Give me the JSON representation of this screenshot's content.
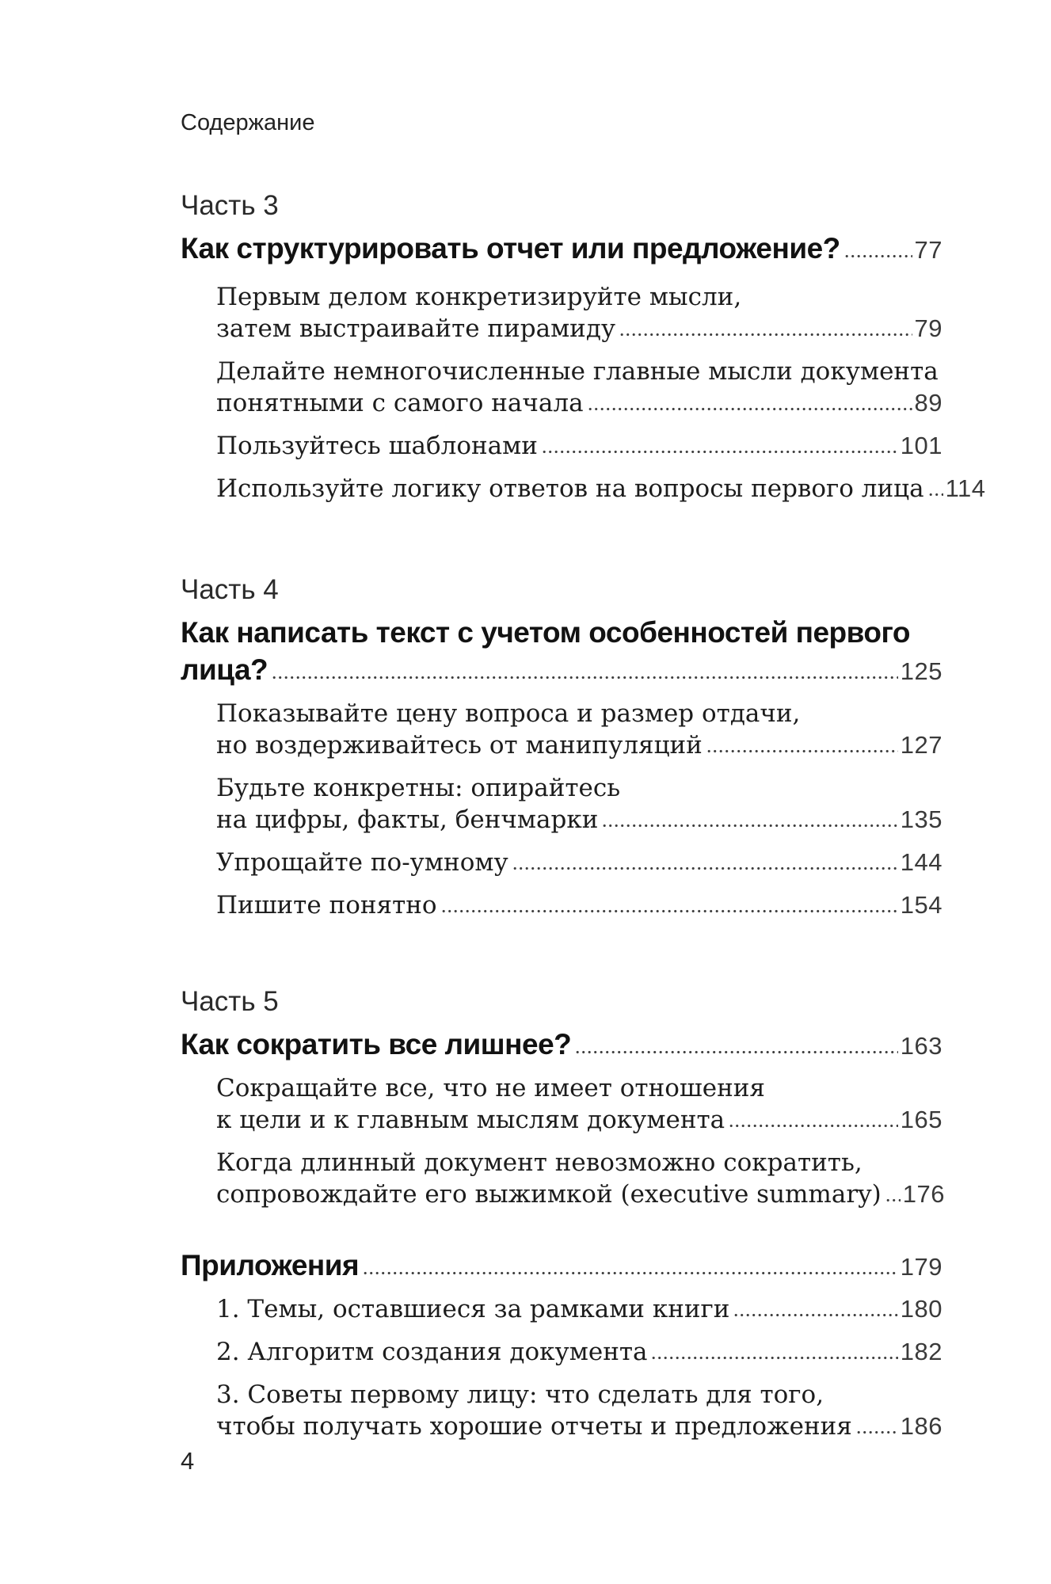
{
  "page": {
    "running_header": "Содержание",
    "folio": "4",
    "background_color": "#ffffff",
    "text_color": "#1c1c1c",
    "leader_dot_color": "#3d3d3d"
  },
  "toc": {
    "sections": [
      {
        "kicker": "Часть 3",
        "title_lines": [
          "Как структурировать отчет или предложение?"
        ],
        "page": "77",
        "entries": [
          {
            "lines": [
              "Первым делом конкретизируйте мысли,",
              "затем выстраивайте пирамиду"
            ],
            "page": "79"
          },
          {
            "lines": [
              "Делайте немногочисленные главные мысли документа",
              "понятными с самого начала"
            ],
            "page": "89"
          },
          {
            "lines": [
              "Пользуйтесь шаблонами"
            ],
            "page": "101"
          },
          {
            "lines": [
              "Используйте логику ответов на вопросы первого лица"
            ],
            "page": "114"
          }
        ]
      },
      {
        "kicker": "Часть 4",
        "title_lines": [
          "Как написать текст с учетом особенностей первого",
          "лица?"
        ],
        "page": "125",
        "entries": [
          {
            "lines": [
              "Показывайте цену вопроса и размер отдачи,",
              "но воздерживайтесь от манипуляций"
            ],
            "page": "127"
          },
          {
            "lines": [
              "Будьте конкретны: опирайтесь",
              "на цифры, факты, бенчмарки"
            ],
            "page": "135"
          },
          {
            "lines": [
              "Упрощайте по-умному"
            ],
            "page": "144"
          },
          {
            "lines": [
              "Пишите понятно"
            ],
            "page": "154"
          }
        ]
      },
      {
        "kicker": "Часть 5",
        "title_lines": [
          "Как сократить все лишнее?"
        ],
        "page": "163",
        "entries": [
          {
            "lines": [
              "Сокращайте все, что не имеет отношения",
              "к цели и к главным мыслям документа"
            ],
            "page": "165"
          },
          {
            "lines": [
              "Когда длинный документ невозможно сократить,",
              "сопровождайте его выжимкой (executive summary)"
            ],
            "page": "176"
          }
        ]
      },
      {
        "kicker": "",
        "title_lines": [
          "Приложения"
        ],
        "page": "179",
        "entries": [
          {
            "lines": [
              "1. Темы, оставшиеся за рамками книги"
            ],
            "page": "180"
          },
          {
            "lines": [
              "2. Алгоритм создания документа"
            ],
            "page": "182"
          },
          {
            "lines": [
              "3. Советы первому лицу: что сделать для того,",
              "чтобы получать хорошие отчеты и предложения"
            ],
            "page": "186"
          }
        ]
      }
    ]
  }
}
